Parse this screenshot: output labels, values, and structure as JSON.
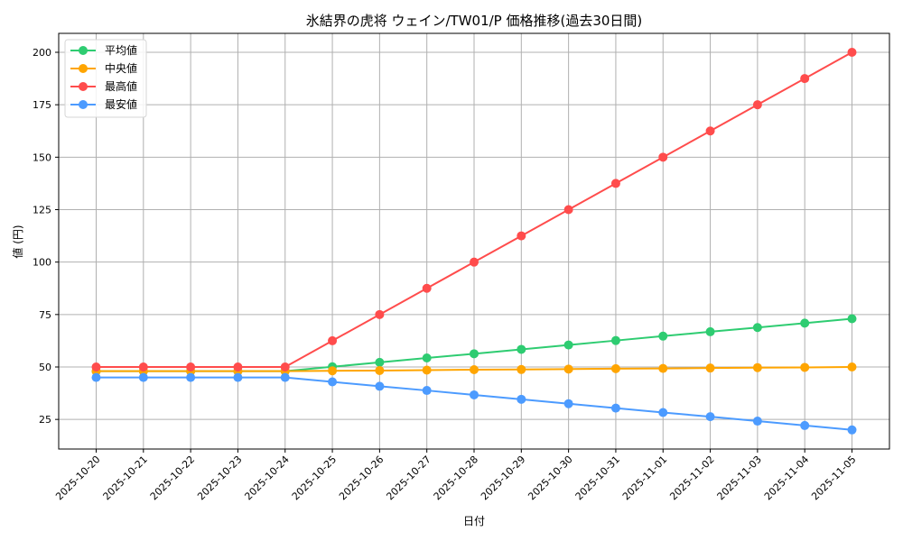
{
  "chart_data": {
    "type": "line",
    "title": "氷結界の虎将 ウェイン/TW01/P 価格推移(過去30日間)",
    "xlabel": "日付",
    "ylabel": "値 (円)",
    "ylim": [
      11,
      209
    ],
    "yticks": [
      25,
      50,
      75,
      100,
      125,
      150,
      175,
      200
    ],
    "grid": true,
    "legend_position": "upper left",
    "x": [
      "2025-10-20",
      "2025-10-21",
      "2025-10-22",
      "2025-10-23",
      "2025-10-24",
      "2025-10-25",
      "2025-10-26",
      "2025-10-27",
      "2025-10-28",
      "2025-10-29",
      "2025-10-30",
      "2025-10-31",
      "2025-11-01",
      "2025-11-02",
      "2025-11-03",
      "2025-11-04",
      "2025-11-05"
    ],
    "series": [
      {
        "name": "平均値",
        "color": "#2ecc71",
        "values": [
          48,
          48,
          48,
          48,
          48,
          50.1,
          52.2,
          54.3,
          56.3,
          58.4,
          60.5,
          62.6,
          64.7,
          66.8,
          68.8,
          70.9,
          73
        ]
      },
      {
        "name": "中央値",
        "color": "#ffa500",
        "values": [
          48,
          48,
          48,
          48,
          48,
          48.2,
          48.3,
          48.5,
          48.7,
          48.8,
          49.0,
          49.2,
          49.3,
          49.5,
          49.7,
          49.8,
          50
        ]
      },
      {
        "name": "最高値",
        "color": "#ff4c4c",
        "values": [
          50,
          50,
          50,
          50,
          50,
          62.5,
          75,
          87.5,
          100,
          112.5,
          125,
          137.5,
          150,
          162.5,
          175,
          187.5,
          200
        ]
      },
      {
        "name": "最安値",
        "color": "#4c9bff",
        "values": [
          45,
          45,
          45,
          45,
          45,
          42.9,
          40.8,
          38.8,
          36.7,
          34.6,
          32.5,
          30.4,
          28.3,
          26.3,
          24.2,
          22.1,
          20
        ]
      }
    ]
  }
}
